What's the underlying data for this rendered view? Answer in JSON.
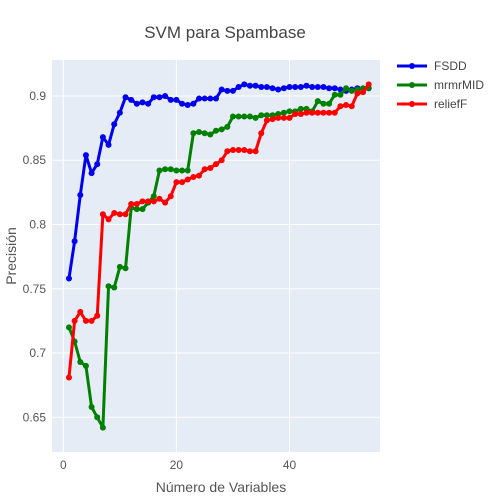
{
  "chart_data": {
    "type": "line",
    "title": "SVM para Spambase",
    "xlabel": "Número de Variables",
    "ylabel": "Precisión",
    "xlim": [
      -2,
      56
    ],
    "ylim": [
      0.623,
      0.928
    ],
    "x_ticks": [
      0,
      20,
      40
    ],
    "y_ticks": [
      0.65,
      0.7,
      0.75,
      0.8,
      0.85,
      0.9
    ],
    "grid": true,
    "legend_position": "top-right",
    "plot_background": "#e5ecf6",
    "series": [
      {
        "name": "FSDD",
        "color": "#0000ee",
        "x": [
          1,
          2,
          3,
          4,
          5,
          6,
          7,
          8,
          9,
          10,
          11,
          12,
          13,
          14,
          15,
          16,
          17,
          18,
          19,
          20,
          21,
          22,
          23,
          24,
          25,
          26,
          27,
          28,
          29,
          30,
          31,
          32,
          33,
          34,
          35,
          36,
          37,
          38,
          39,
          40,
          41,
          42,
          43,
          44,
          45,
          46,
          47,
          48,
          49,
          50,
          51,
          52,
          53,
          54
        ],
        "values": [
          0.758,
          0.787,
          0.823,
          0.854,
          0.84,
          0.847,
          0.868,
          0.862,
          0.878,
          0.887,
          0.899,
          0.897,
          0.894,
          0.895,
          0.894,
          0.899,
          0.899,
          0.9,
          0.897,
          0.897,
          0.894,
          0.893,
          0.894,
          0.898,
          0.898,
          0.898,
          0.898,
          0.905,
          0.904,
          0.904,
          0.907,
          0.909,
          0.908,
          0.908,
          0.907,
          0.907,
          0.906,
          0.905,
          0.906,
          0.907,
          0.907,
          0.907,
          0.908,
          0.907,
          0.907,
          0.907,
          0.906,
          0.906,
          0.905,
          0.904,
          0.905,
          0.906,
          0.905,
          0.906
        ]
      },
      {
        "name": "mrmrMID",
        "color": "#008000",
        "x": [
          1,
          2,
          3,
          4,
          5,
          6,
          7,
          8,
          9,
          10,
          11,
          12,
          13,
          14,
          15,
          16,
          17,
          18,
          19,
          20,
          21,
          22,
          23,
          24,
          25,
          26,
          27,
          28,
          29,
          30,
          31,
          32,
          33,
          34,
          35,
          36,
          37,
          38,
          39,
          40,
          41,
          42,
          43,
          44,
          45,
          46,
          47,
          48,
          49,
          50,
          51,
          52,
          53,
          54
        ],
        "values": [
          0.72,
          0.709,
          0.693,
          0.69,
          0.658,
          0.65,
          0.642,
          0.752,
          0.751,
          0.767,
          0.766,
          0.813,
          0.812,
          0.812,
          0.817,
          0.822,
          0.842,
          0.843,
          0.843,
          0.842,
          0.842,
          0.842,
          0.871,
          0.872,
          0.871,
          0.87,
          0.873,
          0.874,
          0.876,
          0.884,
          0.884,
          0.884,
          0.884,
          0.883,
          0.885,
          0.885,
          0.885,
          0.886,
          0.887,
          0.888,
          0.888,
          0.89,
          0.89,
          0.888,
          0.896,
          0.894,
          0.894,
          0.901,
          0.901,
          0.906,
          0.904,
          0.905,
          0.906,
          0.906
        ]
      },
      {
        "name": "reliefF",
        "color": "#ff0000",
        "x": [
          1,
          2,
          3,
          4,
          5,
          6,
          7,
          8,
          9,
          10,
          11,
          12,
          13,
          14,
          15,
          16,
          17,
          18,
          19,
          20,
          21,
          22,
          23,
          24,
          25,
          26,
          27,
          28,
          29,
          30,
          31,
          32,
          33,
          34,
          35,
          36,
          37,
          38,
          39,
          40,
          41,
          42,
          43,
          44,
          45,
          46,
          47,
          48,
          49,
          50,
          51,
          52,
          53,
          54
        ],
        "values": [
          0.681,
          0.725,
          0.732,
          0.725,
          0.725,
          0.729,
          0.808,
          0.804,
          0.809,
          0.808,
          0.808,
          0.816,
          0.816,
          0.818,
          0.818,
          0.818,
          0.82,
          0.817,
          0.822,
          0.833,
          0.833,
          0.835,
          0.837,
          0.838,
          0.843,
          0.844,
          0.847,
          0.85,
          0.857,
          0.858,
          0.858,
          0.858,
          0.857,
          0.857,
          0.871,
          0.881,
          0.882,
          0.883,
          0.883,
          0.883,
          0.886,
          0.886,
          0.887,
          0.887,
          0.887,
          0.887,
          0.887,
          0.887,
          0.892,
          0.893,
          0.892,
          0.902,
          0.903,
          0.909
        ]
      }
    ]
  }
}
